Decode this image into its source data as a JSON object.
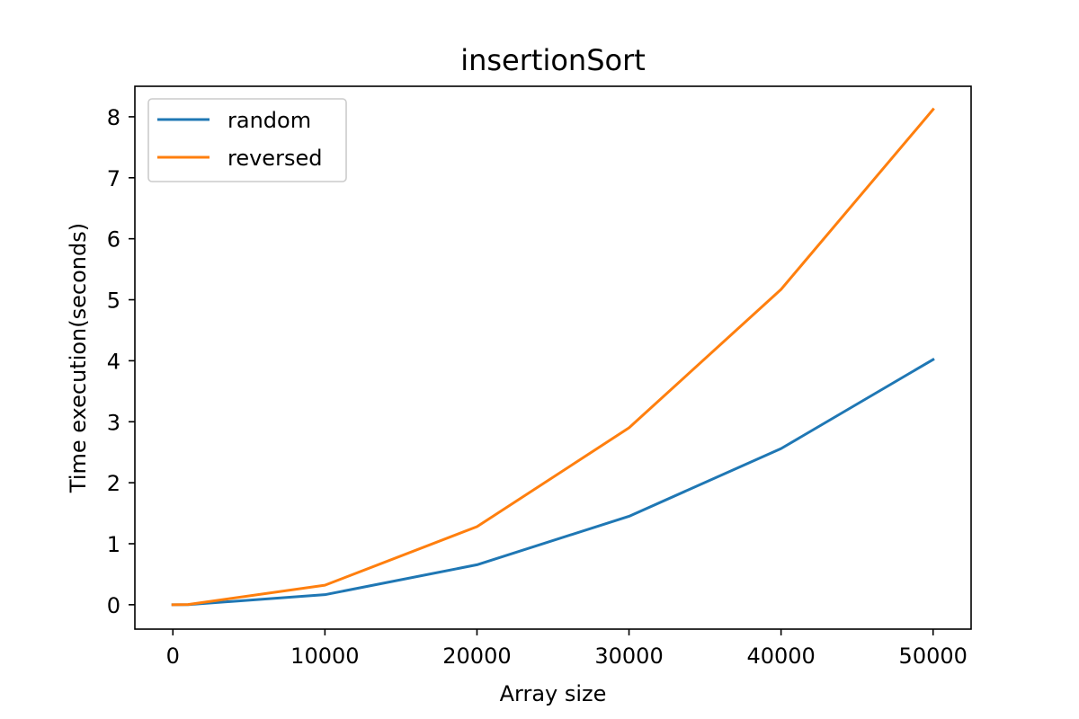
{
  "chart_data": {
    "type": "line",
    "title": "insertionSort",
    "xlabel": "Array size",
    "ylabel": "Time execution(seconds)",
    "xlim": [
      -2500,
      52500
    ],
    "ylim": [
      -0.4,
      8.5
    ],
    "xticks": [
      0,
      10000,
      20000,
      30000,
      40000,
      50000
    ],
    "yticks": [
      0,
      1,
      2,
      3,
      4,
      5,
      6,
      7,
      8
    ],
    "grid": false,
    "legend_position": "top-left",
    "x": [
      0,
      1000,
      10000,
      20000,
      30000,
      40000,
      50000
    ],
    "series": [
      {
        "name": "random",
        "color": "#1f77b4",
        "values": [
          0.0,
          0.002,
          0.165,
          0.655,
          1.45,
          2.56,
          4.02
        ]
      },
      {
        "name": "reversed",
        "color": "#ff7f0e",
        "values": [
          0.0,
          0.004,
          0.32,
          1.28,
          2.9,
          5.17,
          8.12
        ]
      }
    ]
  }
}
